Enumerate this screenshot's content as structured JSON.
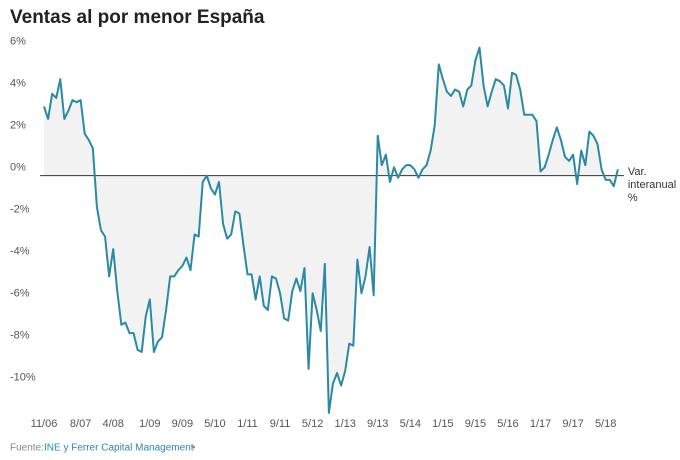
{
  "chart_data": {
    "type": "line",
    "title": "Ventas al por menor España",
    "categories": [
      "11/06",
      null,
      null,
      null,
      null,
      null,
      null,
      null,
      null,
      "8/07",
      null,
      null,
      null,
      null,
      null,
      null,
      null,
      "4/08",
      null,
      null,
      null,
      null,
      null,
      null,
      null,
      null,
      "1/09",
      null,
      null,
      null,
      null,
      null,
      null,
      null,
      "9/09",
      null,
      null,
      null,
      null,
      null,
      null,
      null,
      "5/10",
      null,
      null,
      null,
      null,
      null,
      null,
      null,
      "1/11",
      null,
      null,
      null,
      null,
      null,
      null,
      null,
      "9/11",
      null,
      null,
      null,
      null,
      null,
      null,
      null,
      "5/12",
      null,
      null,
      null,
      null,
      null,
      null,
      null,
      "1/13",
      null,
      null,
      null,
      null,
      null,
      null,
      null,
      "9/13",
      null,
      null,
      null,
      null,
      null,
      null,
      null,
      "5/14",
      null,
      null,
      null,
      null,
      null,
      null,
      null,
      "1/15",
      null,
      null,
      null,
      null,
      null,
      null,
      null,
      "9/15",
      null,
      null,
      null,
      null,
      null,
      null,
      null,
      "5/16",
      null,
      null,
      null,
      null,
      null,
      null,
      null,
      "1/17",
      null,
      null,
      null,
      null,
      null,
      null,
      null,
      "9/17",
      null,
      null,
      null,
      null,
      null,
      null,
      null,
      "5/18",
      null,
      null,
      null
    ],
    "series": [
      {
        "name": "Var. interanual %",
        "color": "#2a8aa6",
        "values": [
          3.3,
          2.7,
          3.9,
          3.7,
          4.6,
          2.7,
          3.1,
          3.6,
          3.5,
          3.6,
          2.0,
          1.7,
          1.3,
          -1.5,
          -2.6,
          -2.9,
          -4.8,
          -3.5,
          -5.5,
          -7.1,
          -7.0,
          -7.5,
          -7.5,
          -8.3,
          -8.4,
          -6.7,
          -5.9,
          -8.4,
          -7.9,
          -7.7,
          -6.4,
          -4.8,
          -4.8,
          -4.5,
          -4.3,
          -3.9,
          -4.5,
          -2.8,
          -2.9,
          -0.3,
          0.0,
          -0.6,
          -0.9,
          -0.3,
          -2.3,
          -3.0,
          -2.8,
          -1.7,
          -1.8,
          -3.3,
          -4.7,
          -4.7,
          -5.9,
          -4.8,
          -6.2,
          -6.4,
          -4.8,
          -4.9,
          -5.6,
          -6.8,
          -6.9,
          -5.5,
          -4.9,
          -5.5,
          -4.4,
          -9.2,
          -5.6,
          -6.4,
          -7.4,
          -4.2,
          -11.3,
          -9.9,
          -9.4,
          -10.0,
          -9.3,
          -8.0,
          -8.1,
          -4.0,
          -5.6,
          -4.8,
          -3.4,
          -5.7,
          1.9,
          0.5,
          1.0,
          -0.3,
          0.4,
          -0.1,
          0.3,
          0.5,
          0.5,
          0.3,
          -0.1,
          0.3,
          0.5,
          1.2,
          2.4,
          5.3,
          4.6,
          4.0,
          3.8,
          4.1,
          4.0,
          3.3,
          4.1,
          4.3,
          5.5,
          6.1,
          4.3,
          3.3,
          4.0,
          4.6,
          4.5,
          4.3,
          3.2,
          4.9,
          4.8,
          4.1,
          2.9,
          2.9,
          2.9,
          2.6,
          0.2,
          0.4,
          1.0,
          1.7,
          2.3,
          1.7,
          0.9,
          0.7,
          1.0,
          -0.4,
          1.2,
          0.5,
          2.1,
          1.9,
          1.5,
          0.3,
          -0.2,
          -0.2,
          -0.5,
          0.3
        ]
      }
    ],
    "annotation": [
      "Var.",
      "interanual",
      "%"
    ],
    "ylim": [
      -11.4,
      6.7
    ],
    "yticks": [
      {
        "value": 6,
        "label": "6%"
      },
      {
        "value": 4,
        "label": "4%"
      },
      {
        "value": 2,
        "label": "2%"
      },
      {
        "value": 0,
        "label": "0%"
      },
      {
        "value": -2,
        "label": "-2%"
      },
      {
        "value": -4,
        "label": "-4%"
      },
      {
        "value": -6,
        "label": "-6%"
      },
      {
        "value": -8,
        "label": "-8%"
      },
      {
        "value": -10,
        "label": "-10%"
      }
    ],
    "area_color": "#f2f2f2",
    "source": {
      "label": "Fuente:",
      "link": "INE y Ferrer Capital Management",
      "end": "•"
    }
  }
}
